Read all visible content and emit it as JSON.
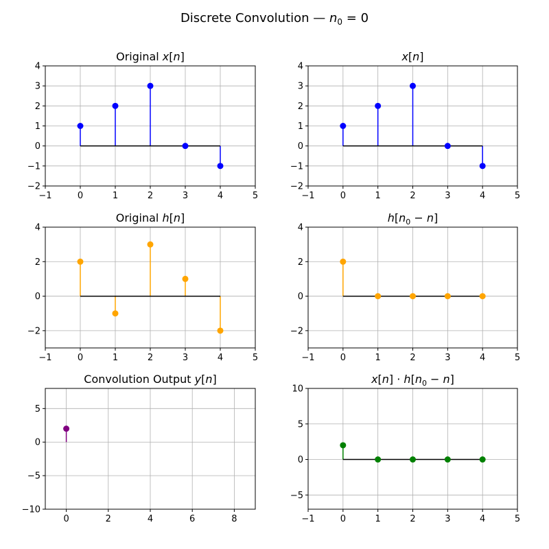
{
  "figure": {
    "title_text": "Discrete Convolution — ",
    "title_var": "n",
    "title_sub": "0",
    "title_tail": " = 0"
  },
  "chart_data": [
    {
      "type": "stem",
      "title": [
        {
          "t": "Original "
        },
        {
          "t": "x",
          "i": true
        },
        {
          "t": "["
        },
        {
          "t": "n",
          "i": true
        },
        {
          "t": "]"
        }
      ],
      "x": [
        0,
        1,
        2,
        3,
        4
      ],
      "y": [
        1,
        2,
        3,
        0,
        -1
      ],
      "color": "#0000ff",
      "xlim": [
        -1,
        5
      ],
      "ylim": [
        -2,
        4
      ],
      "xticks": [
        -1,
        0,
        1,
        2,
        3,
        4,
        5
      ],
      "yticks": [
        -2,
        -1,
        0,
        1,
        2,
        3,
        4
      ],
      "xtick_labels": [
        "−1",
        "0",
        "1",
        "2",
        "3",
        "4",
        "5"
      ],
      "ytick_labels": [
        "−2",
        "−1",
        "0",
        "1",
        "2",
        "3",
        "4"
      ],
      "baseline": [
        0,
        4
      ],
      "grid": true
    },
    {
      "type": "stem",
      "title": [
        {
          "t": "x",
          "i": true
        },
        {
          "t": "["
        },
        {
          "t": "n",
          "i": true
        },
        {
          "t": "]"
        }
      ],
      "x": [
        0,
        1,
        2,
        3,
        4
      ],
      "y": [
        1,
        2,
        3,
        0,
        -1
      ],
      "color": "#0000ff",
      "xlim": [
        -1,
        5
      ],
      "ylim": [
        -2,
        4
      ],
      "xticks": [
        -1,
        0,
        1,
        2,
        3,
        4,
        5
      ],
      "yticks": [
        -2,
        -1,
        0,
        1,
        2,
        3,
        4
      ],
      "xtick_labels": [
        "−1",
        "0",
        "1",
        "2",
        "3",
        "4",
        "5"
      ],
      "ytick_labels": [
        "−2",
        "−1",
        "0",
        "1",
        "2",
        "3",
        "4"
      ],
      "baseline": [
        0,
        4
      ],
      "grid": true
    },
    {
      "type": "stem",
      "title": [
        {
          "t": "Original "
        },
        {
          "t": "h",
          "i": true
        },
        {
          "t": "["
        },
        {
          "t": "n",
          "i": true
        },
        {
          "t": "]"
        }
      ],
      "x": [
        0,
        1,
        2,
        3,
        4
      ],
      "y": [
        2,
        -1,
        3,
        1,
        -2
      ],
      "color": "#ffa500",
      "xlim": [
        -1,
        5
      ],
      "ylim": [
        -3,
        4
      ],
      "xticks": [
        -1,
        0,
        1,
        2,
        3,
        4,
        5
      ],
      "yticks": [
        -2,
        0,
        2,
        4
      ],
      "xtick_labels": [
        "−1",
        "0",
        "1",
        "2",
        "3",
        "4",
        "5"
      ],
      "ytick_labels": [
        "−2",
        "0",
        "2",
        "4"
      ],
      "baseline": [
        0,
        4
      ],
      "grid": true
    },
    {
      "type": "stem",
      "title": [
        {
          "t": "h",
          "i": true
        },
        {
          "t": "["
        },
        {
          "t": "n",
          "i": true
        },
        {
          "t": "0",
          "sub": true
        },
        {
          "t": " − "
        },
        {
          "t": "n",
          "i": true
        },
        {
          "t": "]"
        }
      ],
      "x": [
        0,
        1,
        2,
        3,
        4
      ],
      "y": [
        2,
        0,
        0,
        0,
        0
      ],
      "color": "#ffa500",
      "xlim": [
        -1,
        5
      ],
      "ylim": [
        -3,
        4
      ],
      "xticks": [
        -1,
        0,
        1,
        2,
        3,
        4,
        5
      ],
      "yticks": [
        -2,
        0,
        2,
        4
      ],
      "xtick_labels": [
        "−1",
        "0",
        "1",
        "2",
        "3",
        "4",
        "5"
      ],
      "ytick_labels": [
        "−2",
        "0",
        "2",
        "4"
      ],
      "baseline": [
        0,
        4
      ],
      "grid": true
    },
    {
      "type": "stem",
      "title": [
        {
          "t": "Convolution Output "
        },
        {
          "t": "y",
          "i": true
        },
        {
          "t": "["
        },
        {
          "t": "n",
          "i": true
        },
        {
          "t": "]"
        }
      ],
      "x": [
        0
      ],
      "y": [
        2
      ],
      "color": "#800080",
      "xlim": [
        -1,
        9
      ],
      "ylim": [
        -10,
        8
      ],
      "xticks": [
        0,
        2,
        4,
        6,
        8
      ],
      "yticks": [
        -10,
        -5,
        0,
        5
      ],
      "xtick_labels": [
        "0",
        "2",
        "4",
        "6",
        "8"
      ],
      "ytick_labels": [
        "−10",
        "−5",
        "0",
        "5"
      ],
      "baseline": null,
      "grid": true
    },
    {
      "type": "stem",
      "title": [
        {
          "t": "x",
          "i": true
        },
        {
          "t": "["
        },
        {
          "t": "n",
          "i": true
        },
        {
          "t": "] · "
        },
        {
          "t": "h",
          "i": true
        },
        {
          "t": "["
        },
        {
          "t": "n",
          "i": true
        },
        {
          "t": "0",
          "sub": true
        },
        {
          "t": " − "
        },
        {
          "t": "n",
          "i": true
        },
        {
          "t": "]"
        }
      ],
      "x": [
        0,
        1,
        2,
        3,
        4
      ],
      "y": [
        2,
        0,
        0,
        0,
        0
      ],
      "color": "#008000",
      "xlim": [
        -1,
        5
      ],
      "ylim": [
        -7,
        10
      ],
      "xticks": [
        -1,
        0,
        1,
        2,
        3,
        4,
        5
      ],
      "yticks": [
        -5,
        0,
        5,
        10
      ],
      "xtick_labels": [
        "−1",
        "0",
        "1",
        "2",
        "3",
        "4",
        "5"
      ],
      "ytick_labels": [
        "−5",
        "0",
        "5",
        "10"
      ],
      "baseline": [
        0,
        4
      ],
      "grid": true
    }
  ]
}
